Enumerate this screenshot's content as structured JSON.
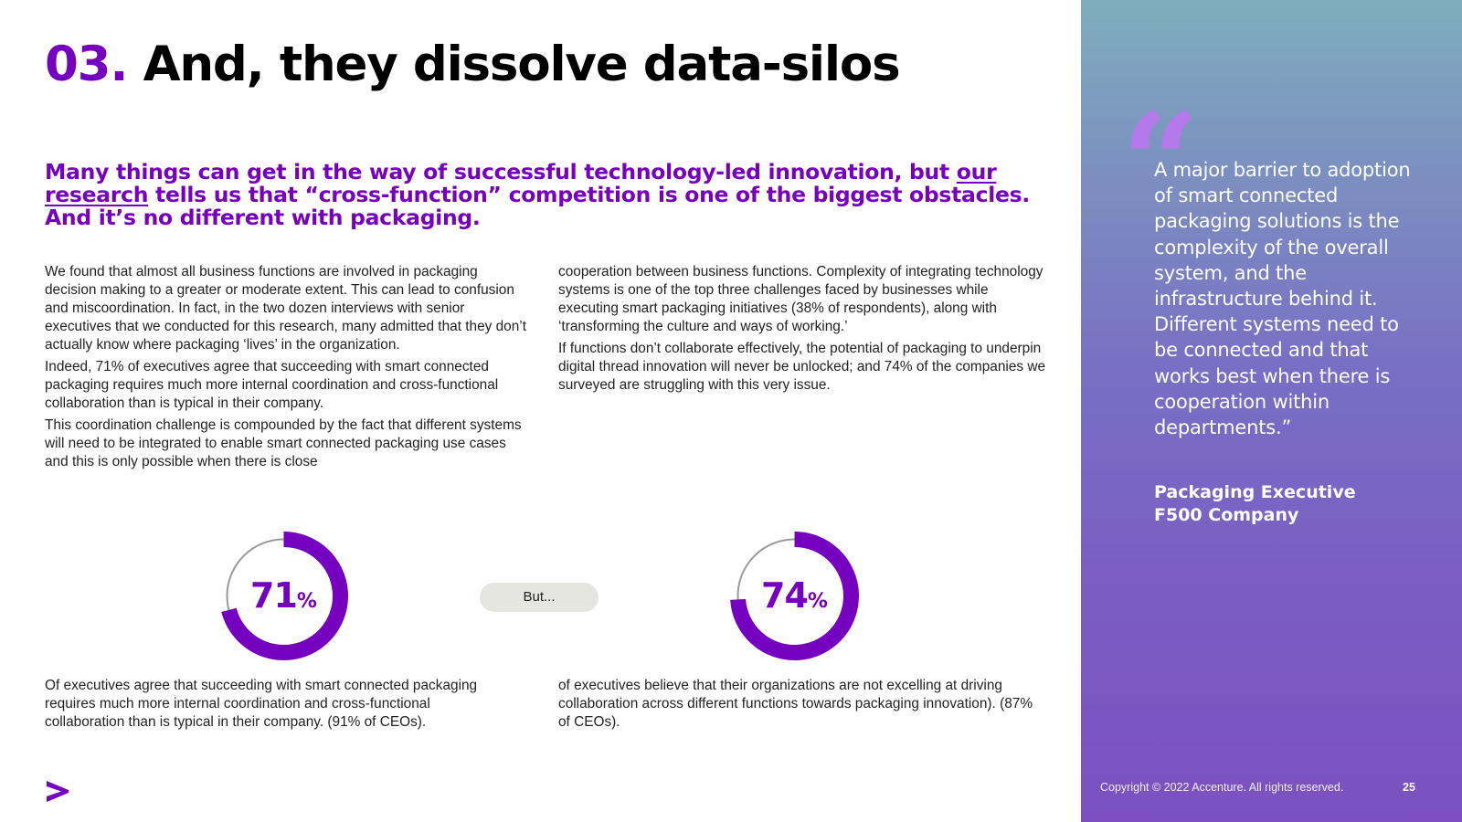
{
  "header": {
    "number": "03.",
    "title": "And, they dissolve data-silos"
  },
  "lead": {
    "part1": "Many things can get in the way of successful technology-led innovation, but ",
    "link_text": "our research",
    "part2": " tells us that “cross-function” competition is one of the biggest obstacles. And it’s no different with packaging."
  },
  "body": {
    "left_paragraphs": [
      "We found that almost all business functions are involved in packaging decision making to a greater or moderate extent. This can lead to confusion and miscoordination. In fact, in the two dozen interviews with senior executives that we conducted for this research, many admitted that they don’t actually know where packaging ‘lives’ in the organization.",
      "Indeed, 71% of executives agree that succeeding with smart connected packaging requires much more internal coordination and cross-functional collaboration than is typical in their company.",
      "This coordination challenge is compounded by the fact that different systems will need to be integrated to enable smart connected packaging use cases and this is only possible when there is close"
    ],
    "right_paragraphs": [
      "cooperation between business functions. Complexity of integrating technology systems is one of the top three challenges faced by businesses while executing smart packaging initiatives (38% of respondents), along with ‘transforming the culture and ways of working.’",
      "If functions don’t collaborate effectively, the potential of packaging to underpin digital thread innovation will never be unlocked; and 74% of the companies we surveyed are struggling with this very issue."
    ]
  },
  "stats": [
    {
      "value": "71",
      "unit": "%",
      "fraction": 0.71,
      "text": "Of executives agree that succeeding with smart connected packaging requires much more internal coordination and cross-functional collaboration than is typical in their company. (91% of CEOs)."
    },
    {
      "value": "74",
      "unit": "%",
      "fraction": 0.74,
      "text": "of executives believe that their organizations are not excelling at driving collaboration across different functions towards packaging innovation). (87% of CEOs)."
    }
  ],
  "connector_label": "But...",
  "sidebar": {
    "quote_mark": "“",
    "quote": "A major barrier to adoption of smart connected packaging solutions is the complexity of the overall system, and the infrastructure behind it. Different systems need to be connected and that works best when there is cooperation within departments.”",
    "attribution_line1": "Packaging Executive",
    "attribution_line2": "F500 Company",
    "copyright": "Copyright © 2022 Accenture. All rights reserved.",
    "page_number": "25"
  },
  "colors": {
    "accent": "#7500c0",
    "track": "#9a9a9a",
    "pill": "#e6e6e1",
    "quote_mark": "#b978ee"
  },
  "logo": {
    "icon": "accenture-chevron-icon"
  }
}
